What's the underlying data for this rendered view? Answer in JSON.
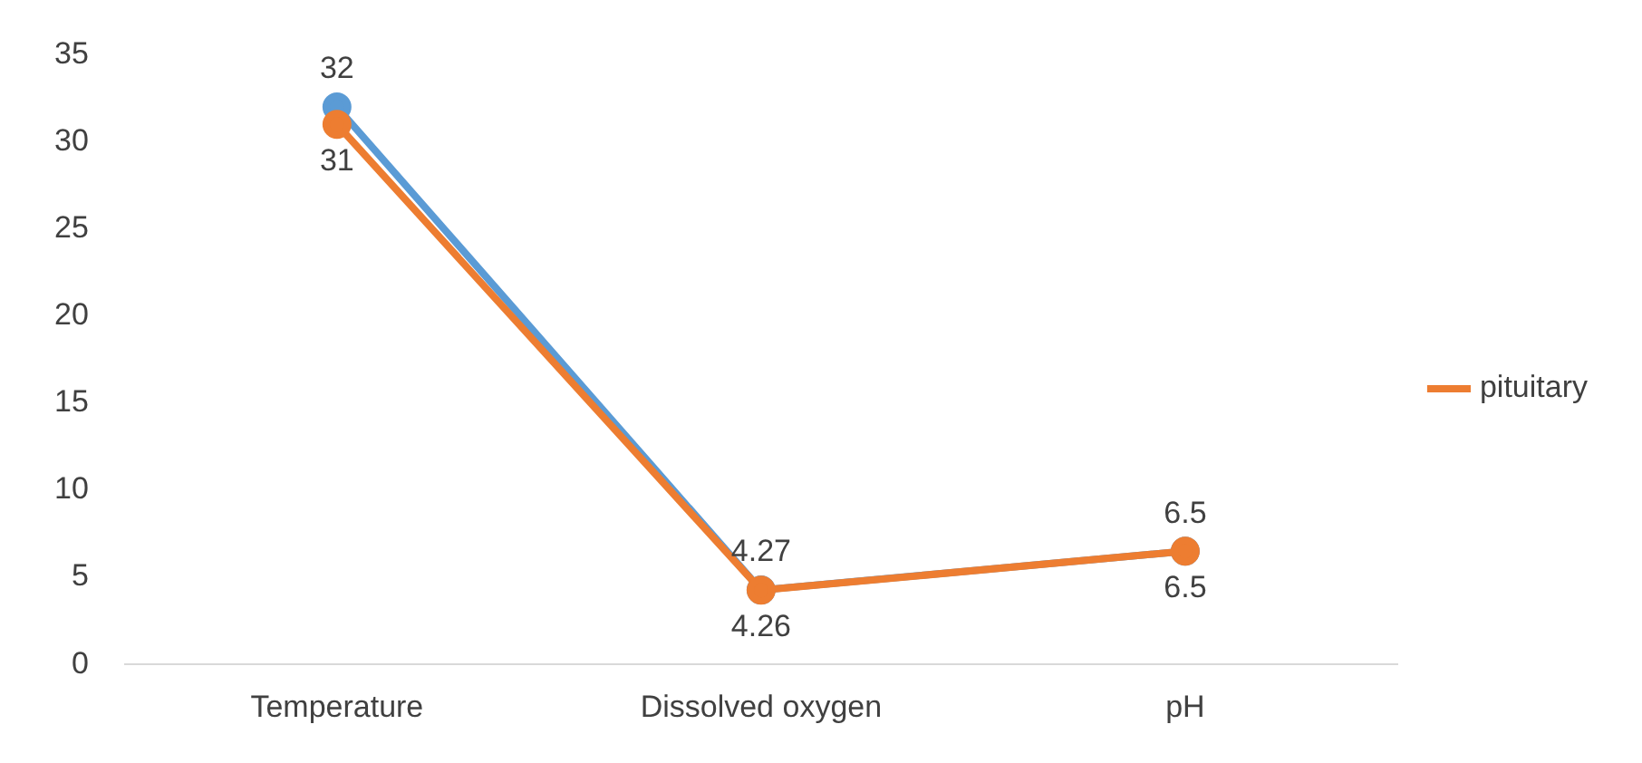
{
  "chart_data": {
    "type": "line",
    "categories": [
      "Temperature",
      "Dissolved oxygen",
      "pH"
    ],
    "series": [
      {
        "color": "#5b9bd5",
        "values": [
          32,
          4.27,
          6.5
        ]
      },
      {
        "name": "pituitary",
        "color": "#ed7d31",
        "values": [
          31,
          4.26,
          6.5
        ]
      }
    ],
    "ylim": [
      0,
      35
    ],
    "yticks": [
      0,
      5,
      10,
      15,
      20,
      25,
      30,
      35
    ],
    "grid": false,
    "legend": "right",
    "marker": "circle",
    "line_style": "solid",
    "data_labels": true
  }
}
